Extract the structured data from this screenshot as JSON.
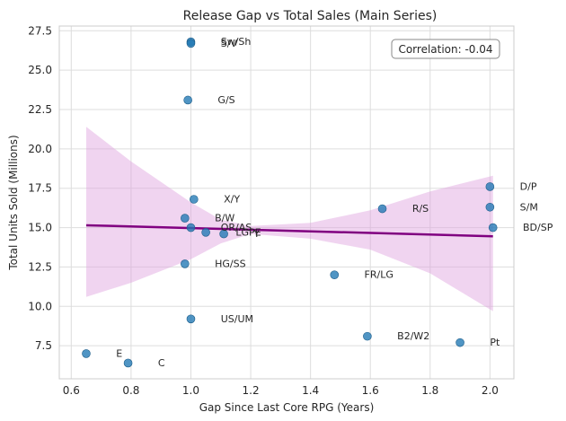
{
  "chart_data": {
    "type": "scatter",
    "title": "Release Gap vs Total Sales (Main Series)",
    "xlabel": "Gap Since Last Core RPG (Years)",
    "ylabel": "Total Units Sold (Millions)",
    "xlim": [
      0.56,
      2.08
    ],
    "ylim": [
      5.4,
      27.8
    ],
    "xticks": [
      0.6,
      0.8,
      1.0,
      1.2,
      1.4,
      1.6,
      1.8,
      2.0
    ],
    "xtick_labels": [
      "0.6",
      "0.8",
      "1.0",
      "1.2",
      "1.4",
      "1.6",
      "1.8",
      "2.0"
    ],
    "yticks": [
      7.5,
      10.0,
      12.5,
      15.0,
      17.5,
      20.0,
      22.5,
      25.0,
      27.5
    ],
    "ytick_labels": [
      "7.5",
      "10.0",
      "12.5",
      "15.0",
      "17.5",
      "20.0",
      "22.5",
      "25.0",
      "27.5"
    ],
    "grid": true,
    "point_color": "#1f77b4",
    "regression_color": "#800080",
    "ci_color": "#dda0dd",
    "annotation": "Correlation: -0.04",
    "regression": {
      "x": [
        0.65,
        2.01
      ],
      "y": [
        15.15,
        14.45
      ]
    },
    "ci": {
      "x": [
        0.65,
        0.8,
        1.0,
        1.1,
        1.2,
        1.4,
        1.6,
        1.8,
        2.01
      ],
      "upper": [
        21.4,
        19.2,
        16.6,
        15.5,
        15.1,
        15.3,
        16.1,
        17.3,
        18.3
      ],
      "lower": [
        10.6,
        11.5,
        13.0,
        14.0,
        14.6,
        14.3,
        13.6,
        12.1,
        9.7
      ]
    },
    "points": [
      {
        "label": "Sw/Sh",
        "x": 1.0,
        "y": 26.8
      },
      {
        "label": "S/V",
        "x": 1.0,
        "y": 26.7
      },
      {
        "label": "G/S",
        "x": 0.99,
        "y": 23.1
      },
      {
        "label": "D/P",
        "x": 2.0,
        "y": 17.6
      },
      {
        "label": "X/Y",
        "x": 1.01,
        "y": 16.8
      },
      {
        "label": "S/M",
        "x": 2.0,
        "y": 16.3
      },
      {
        "label": "R/S",
        "x": 1.64,
        "y": 16.2
      },
      {
        "label": "B/W",
        "x": 0.98,
        "y": 15.6
      },
      {
        "label": "OR/AS",
        "x": 1.0,
        "y": 15.0
      },
      {
        "label": "BD/SP",
        "x": 2.01,
        "y": 15.0
      },
      {
        "label": "LGPE",
        "x": 1.05,
        "y": 14.7
      },
      {
        "label": "Y",
        "x": 1.11,
        "y": 14.6
      },
      {
        "label": "HG/SS",
        "x": 0.98,
        "y": 12.7
      },
      {
        "label": "FR/LG",
        "x": 1.48,
        "y": 12.0
      },
      {
        "label": "US/UM",
        "x": 1.0,
        "y": 9.2
      },
      {
        "label": "B2/W2",
        "x": 1.59,
        "y": 8.1
      },
      {
        "label": "Pt",
        "x": 1.9,
        "y": 7.7
      },
      {
        "label": "E",
        "x": 0.65,
        "y": 7.0
      },
      {
        "label": "C",
        "x": 0.79,
        "y": 6.4
      }
    ]
  }
}
